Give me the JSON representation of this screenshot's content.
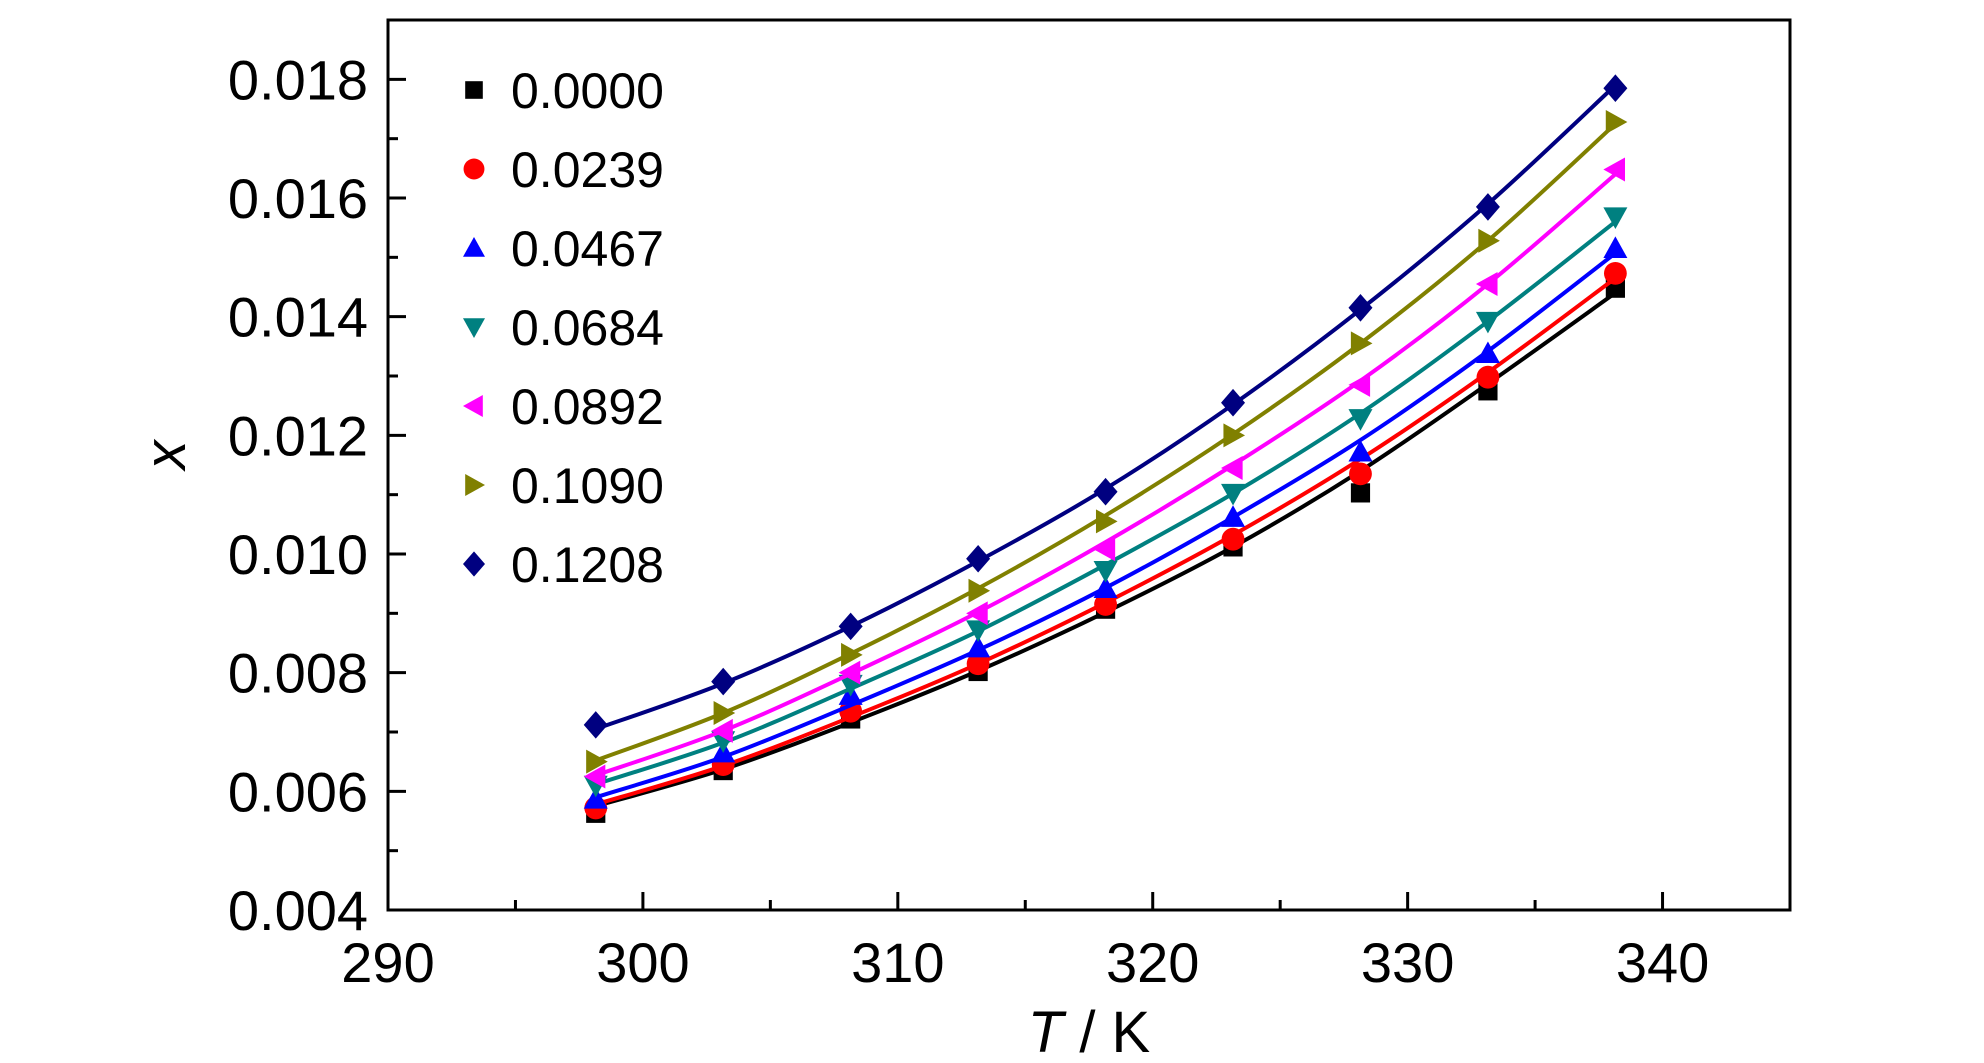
{
  "chart_data": {
    "type": "line",
    "xlabel_var": "T",
    "xlabel_unit": " / K",
    "ylabel": "x",
    "xlim": [
      290,
      345
    ],
    "ylim": [
      0.004,
      0.019
    ],
    "x_ticks": [
      "290",
      "300",
      "310",
      "320",
      "330",
      "340"
    ],
    "y_ticks": [
      "0.004",
      "0.006",
      "0.008",
      "0.010",
      "0.012",
      "0.014",
      "0.016",
      "0.018"
    ],
    "grid": false,
    "legend_position": "top-left",
    "x": [
      298.15,
      303.15,
      308.15,
      313.15,
      318.15,
      323.15,
      328.15,
      333.15,
      338.15
    ],
    "series": [
      {
        "name": "0.0000",
        "color": "#000000",
        "marker": "square",
        "values": [
          0.00563,
          0.00635,
          0.00722,
          0.00802,
          0.00907,
          0.01012,
          0.01103,
          0.01275,
          0.01448
        ],
        "fit": [
          0.00575,
          0.00637,
          0.00716,
          0.00803,
          0.00902,
          0.01012,
          0.0114,
          0.01287,
          0.0144
        ]
      },
      {
        "name": "0.0239",
        "color": "#ff0000",
        "marker": "circle",
        "values": [
          0.00572,
          0.00645,
          0.00735,
          0.00815,
          0.00915,
          0.01025,
          0.01135,
          0.01298,
          0.01473
        ],
        "fit": [
          0.00578,
          0.00643,
          0.00725,
          0.00815,
          0.00918,
          0.01032,
          0.0116,
          0.01306,
          0.01465
        ]
      },
      {
        "name": "0.0467",
        "color": "#0000ff",
        "marker": "triangle-up",
        "values": [
          0.00587,
          0.00665,
          0.00762,
          0.00842,
          0.00942,
          0.01062,
          0.01172,
          0.01338,
          0.01515
        ],
        "fit": [
          0.0059,
          0.00658,
          0.00745,
          0.00838,
          0.00943,
          0.01062,
          0.01192,
          0.01342,
          0.01507
        ]
      },
      {
        "name": "0.0684",
        "color": "#008080",
        "marker": "triangle-down",
        "values": [
          0.0061,
          0.00685,
          0.0078,
          0.00872,
          0.00972,
          0.01102,
          0.01228,
          0.01392,
          0.01568
        ],
        "fit": [
          0.00612,
          0.00682,
          0.00773,
          0.0087,
          0.00982,
          0.01102,
          0.01237,
          0.01392,
          0.0156
        ]
      },
      {
        "name": "0.0892",
        "color": "#ff00ff",
        "marker": "triangle-left",
        "values": [
          0.00625,
          0.00702,
          0.008,
          0.009,
          0.01008,
          0.01145,
          0.01285,
          0.01455,
          0.01648
        ],
        "fit": [
          0.00627,
          0.00702,
          0.00798,
          0.00902,
          0.0102,
          0.0115,
          0.01292,
          0.01455,
          0.0164
        ]
      },
      {
        "name": "0.1090",
        "color": "#808000",
        "marker": "triangle-right",
        "values": [
          0.0065,
          0.00732,
          0.0083,
          0.00938,
          0.01055,
          0.012,
          0.01355,
          0.01528,
          0.01728
        ],
        "fit": [
          0.00652,
          0.00732,
          0.00832,
          0.00942,
          0.01065,
          0.01202,
          0.01355,
          0.01528,
          0.01725
        ]
      },
      {
        "name": "0.1208",
        "color": "#000080",
        "marker": "diamond",
        "values": [
          0.00712,
          0.00785,
          0.00878,
          0.00992,
          0.01105,
          0.01255,
          0.01415,
          0.01585,
          0.01785
        ],
        "fit": [
          0.00705,
          0.00782,
          0.00878,
          0.00988,
          0.0111,
          0.01252,
          0.01412,
          0.0159,
          0.0179
        ]
      }
    ]
  }
}
